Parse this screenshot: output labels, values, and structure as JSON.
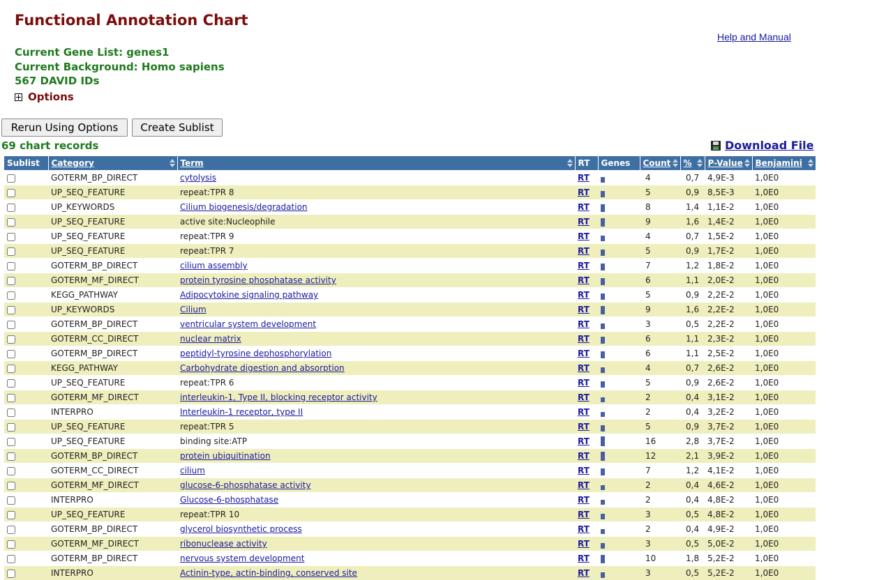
{
  "page": {
    "title": "Functional Annotation Chart",
    "help_link": "Help and Manual",
    "gene_list": "Current Gene List: genes1",
    "background": "Current Background: Homo sapiens",
    "ids": "567 DAVID IDs",
    "options_label": "Options",
    "rerun_button": "Rerun Using Options",
    "sublist_button": "Create Sublist",
    "records": "69 chart records",
    "download_label": "Download File"
  },
  "table": {
    "headers": {
      "sublist": "Sublist",
      "category": "Category",
      "term": "Term",
      "rt": "RT",
      "genes": "Genes",
      "count": "Count",
      "percent": "%",
      "pvalue": "P-Value",
      "benjamini": "Benjamini"
    },
    "rt_label": "RT",
    "rows": [
      {
        "category": "GOTERM_BP_DIRECT",
        "term": "cytolysis",
        "linked": true,
        "count": "4",
        "percent": "0,7",
        "pvalue": "4,9E-3",
        "benjamini": "1,0E0",
        "bar": 0.4
      },
      {
        "category": "UP_SEQ_FEATURE",
        "term": "repeat:TPR 8",
        "linked": false,
        "count": "5",
        "percent": "0,9",
        "pvalue": "8,5E-3",
        "benjamini": "1,0E0",
        "bar": 0.5
      },
      {
        "category": "UP_KEYWORDS",
        "term": "Cilium biogenesis/degradation",
        "linked": true,
        "count": "8",
        "percent": "1,4",
        "pvalue": "1,1E-2",
        "benjamini": "1,0E0",
        "bar": 0.7
      },
      {
        "category": "UP_SEQ_FEATURE",
        "term": "active site:Nucleophile",
        "linked": false,
        "count": "9",
        "percent": "1,6",
        "pvalue": "1,4E-2",
        "benjamini": "1,0E0",
        "bar": 0.75
      },
      {
        "category": "UP_SEQ_FEATURE",
        "term": "repeat:TPR 9",
        "linked": false,
        "count": "4",
        "percent": "0,7",
        "pvalue": "1,5E-2",
        "benjamini": "1,0E0",
        "bar": 0.4
      },
      {
        "category": "UP_SEQ_FEATURE",
        "term": "repeat:TPR 7",
        "linked": false,
        "count": "5",
        "percent": "0,9",
        "pvalue": "1,7E-2",
        "benjamini": "1,0E0",
        "bar": 0.5
      },
      {
        "category": "GOTERM_BP_DIRECT",
        "term": "cilium assembly",
        "linked": true,
        "count": "7",
        "percent": "1,2",
        "pvalue": "1,8E-2",
        "benjamini": "1,0E0",
        "bar": 0.6
      },
      {
        "category": "GOTERM_MF_DIRECT",
        "term": "protein tyrosine phosphatase activity",
        "linked": true,
        "count": "6",
        "percent": "1,1",
        "pvalue": "2,0E-2",
        "benjamini": "1,0E0",
        "bar": 0.55
      },
      {
        "category": "KEGG_PATHWAY",
        "term": "Adipocytokine signaling pathway",
        "linked": true,
        "count": "5",
        "percent": "0,9",
        "pvalue": "2,2E-2",
        "benjamini": "1,0E0",
        "bar": 0.5
      },
      {
        "category": "UP_KEYWORDS",
        "term": "Cilium",
        "linked": true,
        "count": "9",
        "percent": "1,6",
        "pvalue": "2,2E-2",
        "benjamini": "1,0E0",
        "bar": 0.75
      },
      {
        "category": "GOTERM_BP_DIRECT",
        "term": "ventricular system development",
        "linked": true,
        "count": "3",
        "percent": "0,5",
        "pvalue": "2,2E-2",
        "benjamini": "1,0E0",
        "bar": 0.35
      },
      {
        "category": "GOTERM_CC_DIRECT",
        "term": "nuclear matrix",
        "linked": true,
        "count": "6",
        "percent": "1,1",
        "pvalue": "2,3E-2",
        "benjamini": "1,0E0",
        "bar": 0.55
      },
      {
        "category": "GOTERM_BP_DIRECT",
        "term": "peptidyl-tyrosine dephosphorylation",
        "linked": true,
        "count": "6",
        "percent": "1,1",
        "pvalue": "2,5E-2",
        "benjamini": "1,0E0",
        "bar": 0.55
      },
      {
        "category": "KEGG_PATHWAY",
        "term": "Carbohydrate digestion and absorption",
        "linked": true,
        "count": "4",
        "percent": "0,7",
        "pvalue": "2,6E-2",
        "benjamini": "1,0E0",
        "bar": 0.4
      },
      {
        "category": "UP_SEQ_FEATURE",
        "term": "repeat:TPR 6",
        "linked": false,
        "count": "5",
        "percent": "0,9",
        "pvalue": "2,6E-2",
        "benjamini": "1,0E0",
        "bar": 0.5
      },
      {
        "category": "GOTERM_MF_DIRECT",
        "term": "interleukin-1, Type II, blocking receptor activity",
        "linked": true,
        "count": "2",
        "percent": "0,4",
        "pvalue": "3,1E-2",
        "benjamini": "1,0E0",
        "bar": 0.3
      },
      {
        "category": "INTERPRO",
        "term": "Interleukin-1 receptor, type II",
        "linked": true,
        "count": "2",
        "percent": "0,4",
        "pvalue": "3,2E-2",
        "benjamini": "1,0E0",
        "bar": 0.3
      },
      {
        "category": "UP_SEQ_FEATURE",
        "term": "repeat:TPR 5",
        "linked": false,
        "count": "5",
        "percent": "0,9",
        "pvalue": "3,7E-2",
        "benjamini": "1,0E0",
        "bar": 0.5
      },
      {
        "category": "UP_SEQ_FEATURE",
        "term": "binding site:ATP",
        "linked": false,
        "count": "16",
        "percent": "2,8",
        "pvalue": "3,7E-2",
        "benjamini": "1,0E0",
        "bar": 1.0
      },
      {
        "category": "GOTERM_BP_DIRECT",
        "term": "protein ubiquitination",
        "linked": true,
        "count": "12",
        "percent": "2,1",
        "pvalue": "3,9E-2",
        "benjamini": "1,0E0",
        "bar": 0.85
      },
      {
        "category": "GOTERM_CC_DIRECT",
        "term": "cilium",
        "linked": true,
        "count": "7",
        "percent": "1,2",
        "pvalue": "4,1E-2",
        "benjamini": "1,0E0",
        "bar": 0.6
      },
      {
        "category": "GOTERM_MF_DIRECT",
        "term": "glucose-6-phosphatase activity",
        "linked": true,
        "count": "2",
        "percent": "0,4",
        "pvalue": "4,6E-2",
        "benjamini": "1,0E0",
        "bar": 0.3
      },
      {
        "category": "INTERPRO",
        "term": "Glucose-6-phosphatase",
        "linked": true,
        "count": "2",
        "percent": "0,4",
        "pvalue": "4,8E-2",
        "benjamini": "1,0E0",
        "bar": 0.3
      },
      {
        "category": "UP_SEQ_FEATURE",
        "term": "repeat:TPR 10",
        "linked": false,
        "count": "3",
        "percent": "0,5",
        "pvalue": "4,8E-2",
        "benjamini": "1,0E0",
        "bar": 0.35
      },
      {
        "category": "GOTERM_BP_DIRECT",
        "term": "glycerol biosynthetic process",
        "linked": true,
        "count": "2",
        "percent": "0,4",
        "pvalue": "4,9E-2",
        "benjamini": "1,0E0",
        "bar": 0.3
      },
      {
        "category": "GOTERM_MF_DIRECT",
        "term": "ribonuclease activity",
        "linked": true,
        "count": "3",
        "percent": "0,5",
        "pvalue": "5,0E-2",
        "benjamini": "1,0E0",
        "bar": 0.35
      },
      {
        "category": "GOTERM_BP_DIRECT",
        "term": "nervous system development",
        "linked": true,
        "count": "10",
        "percent": "1,8",
        "pvalue": "5,2E-2",
        "benjamini": "1,0E0",
        "bar": 0.8
      },
      {
        "category": "INTERPRO",
        "term": "Actinin-type, actin-binding, conserved site",
        "linked": true,
        "count": "3",
        "percent": "0,5",
        "pvalue": "5,2E-2",
        "benjamini": "1,0E0",
        "bar": 0.35
      }
    ]
  }
}
